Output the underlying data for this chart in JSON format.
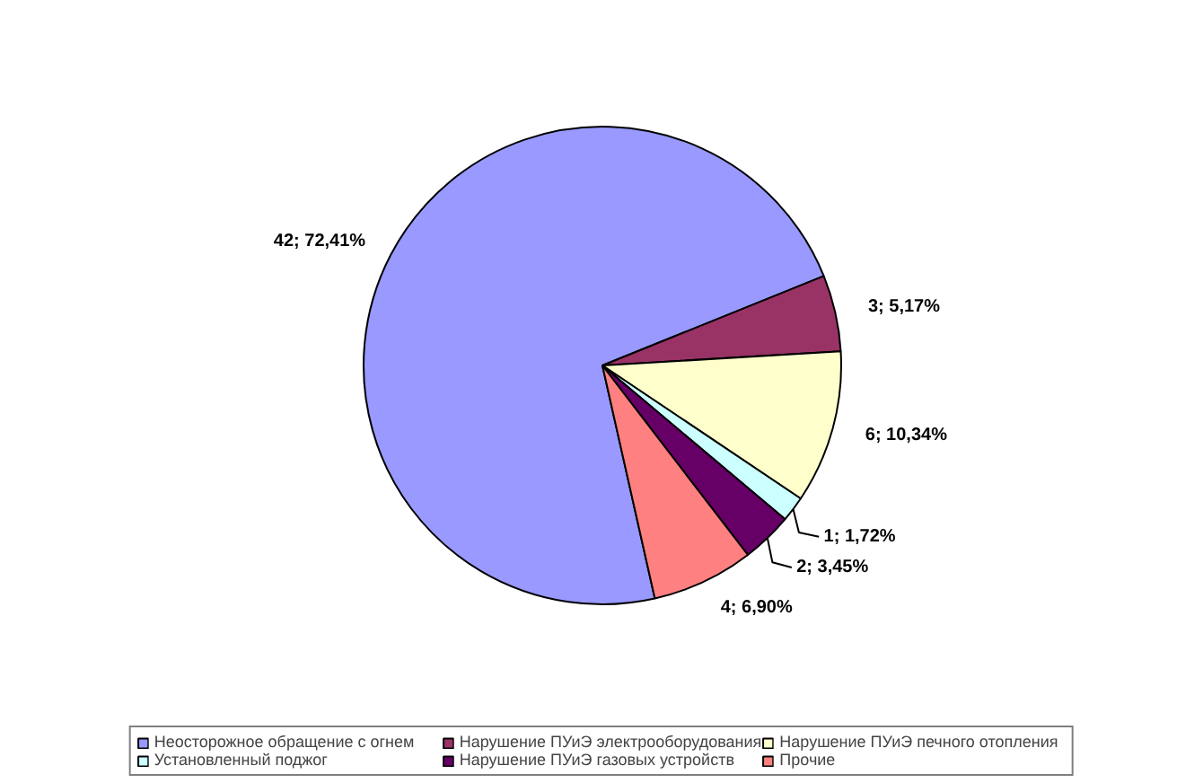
{
  "chart_data": {
    "type": "pie",
    "categories": [
      "Неосторожное обращение с огнем",
      "Нарушение ПУиЭ электрооборудования",
      "Нарушение ПУиЭ печного отопления",
      "Установленный поджог",
      "Нарушение ПУиЭ газовых устройств",
      "Прочие"
    ],
    "values": [
      42,
      3,
      6,
      1,
      2,
      4
    ],
    "colors": [
      "#9999ff",
      "#993366",
      "#ffffcc",
      "#ccffff",
      "#660066",
      "#ff8080"
    ],
    "value_labels": [
      "42; 72,41%",
      "3; 5,17%",
      "6; 10,34%",
      "1; 1,72%",
      "2; 3,45%",
      "4; 6,90%"
    ],
    "legend": "bottom"
  }
}
